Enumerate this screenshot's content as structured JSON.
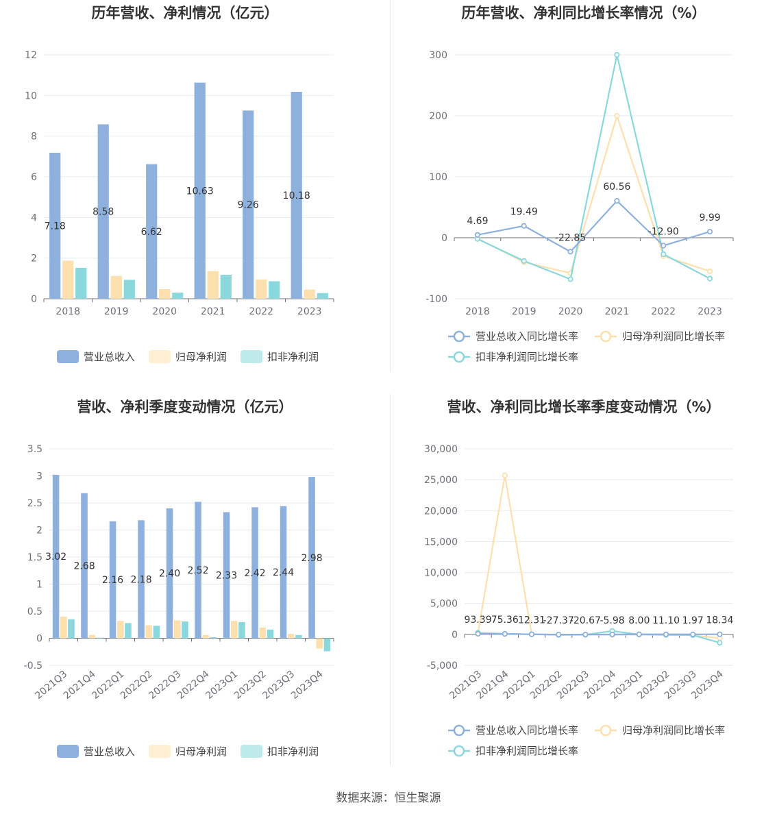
{
  "source": "数据来源：恒生聚源",
  "colors": {
    "revenue": "#8eb0dc",
    "net_profit": "#fde0ad",
    "deducted_profit": "#8ad8dc"
  },
  "chart_data": [
    {
      "type": "bar",
      "title": "历年营收、净利情况（亿元）",
      "categories": [
        "2018",
        "2019",
        "2020",
        "2021",
        "2022",
        "2023"
      ],
      "series": [
        {
          "name": "营业总收入",
          "values": [
            7.18,
            8.58,
            6.62,
            10.63,
            9.26,
            10.18
          ],
          "labels": [
            "7.18",
            "8.58",
            "6.62",
            "10.63",
            "9.26",
            "10.18"
          ]
        },
        {
          "name": "归母净利润",
          "values": [
            1.87,
            1.12,
            0.47,
            1.36,
            0.95,
            0.45
          ]
        },
        {
          "name": "扣非净利润",
          "values": [
            1.52,
            0.93,
            0.3,
            1.18,
            0.86,
            0.28
          ]
        }
      ],
      "ylim": [
        0,
        12
      ],
      "yticks": [
        "0",
        "2",
        "4",
        "6",
        "8",
        "10",
        "12"
      ],
      "grid": true,
      "legend": "bottom"
    },
    {
      "type": "line",
      "title": "历年营收、净利同比增长率情况（%）",
      "categories": [
        "2018",
        "2019",
        "2020",
        "2021",
        "2022",
        "2023"
      ],
      "series": [
        {
          "name": "营业总收入同比增长率",
          "values": [
            4.69,
            19.49,
            -22.85,
            60.56,
            -12.9,
            9.99
          ],
          "labels": [
            "4.69",
            "19.49",
            "-22.85",
            "60.56",
            "-12.90",
            "9.99"
          ]
        },
        {
          "name": "归母净利润同比增长率",
          "values": [
            -1,
            -40,
            -58,
            200,
            -30,
            -55
          ]
        },
        {
          "name": "扣非净利润同比增长率",
          "values": [
            -2,
            -38,
            -68,
            300,
            -27,
            -67
          ]
        }
      ],
      "ylim": [
        -100,
        300
      ],
      "yticks": [
        "-100",
        "0",
        "100",
        "200",
        "300"
      ],
      "grid": true,
      "legend": "bottom"
    },
    {
      "type": "bar",
      "title": "营收、净利季度变动情况（亿元）",
      "categories": [
        "2021Q3",
        "2021Q4",
        "2022Q1",
        "2022Q2",
        "2022Q3",
        "2022Q4",
        "2023Q1",
        "2023Q2",
        "2023Q3",
        "2023Q4"
      ],
      "series": [
        {
          "name": "营业总收入",
          "values": [
            3.02,
            2.68,
            2.16,
            2.18,
            2.4,
            2.52,
            2.33,
            2.42,
            2.44,
            2.98
          ],
          "labels": [
            "3.02",
            "2.68",
            "2.16",
            "2.18",
            "2.40",
            "2.52",
            "2.33",
            "2.42",
            "2.44",
            "2.98"
          ]
        },
        {
          "name": "归母净利润",
          "values": [
            0.4,
            0.06,
            0.32,
            0.24,
            0.33,
            0.06,
            0.32,
            0.2,
            0.08,
            -0.19
          ]
        },
        {
          "name": "扣非净利润",
          "values": [
            0.35,
            0.01,
            0.28,
            0.23,
            0.31,
            0.02,
            0.3,
            0.16,
            0.06,
            -0.24
          ]
        }
      ],
      "ylim": [
        -0.5,
        3.5
      ],
      "yticks": [
        "-0.5",
        "0",
        "0.5",
        "1",
        "1.5",
        "2",
        "2.5",
        "3",
        "3.5"
      ],
      "grid": true,
      "legend": "bottom"
    },
    {
      "type": "line",
      "title": "营收、净利同比增长率季度变动情况（%）",
      "categories": [
        "2021Q3",
        "2021Q4",
        "2022Q1",
        "2022Q2",
        "2022Q3",
        "2022Q4",
        "2023Q1",
        "2023Q2",
        "2023Q3",
        "2023Q4"
      ],
      "series": [
        {
          "name": "营业总收入同比增长率",
          "values": [
            93.39,
            75.36,
            12.31,
            -27.37,
            -20.67,
            -5.98,
            8.0,
            11.1,
            1.97,
            18.34
          ],
          "labels": [
            "93.39",
            "75.36",
            "12.31",
            "-27.37",
            "-20.67",
            "-5.98",
            "8.00",
            "11.10",
            "1.97",
            "18.34"
          ]
        },
        {
          "name": "归母净利润同比增长率",
          "values": [
            300,
            25700,
            30,
            -100,
            -50,
            -100,
            -50,
            -100,
            -150,
            -600
          ]
        },
        {
          "name": "扣非净利润同比增长率",
          "values": [
            250,
            100,
            20,
            -80,
            -60,
            550,
            -20,
            -80,
            -120,
            -1350
          ]
        }
      ],
      "ylim": [
        -5000,
        30000
      ],
      "yticks": [
        "-5,000",
        "0",
        "5,000",
        "10,000",
        "15,000",
        "20,000",
        "25,000",
        "30,000"
      ],
      "grid": true,
      "legend": "bottom"
    }
  ]
}
